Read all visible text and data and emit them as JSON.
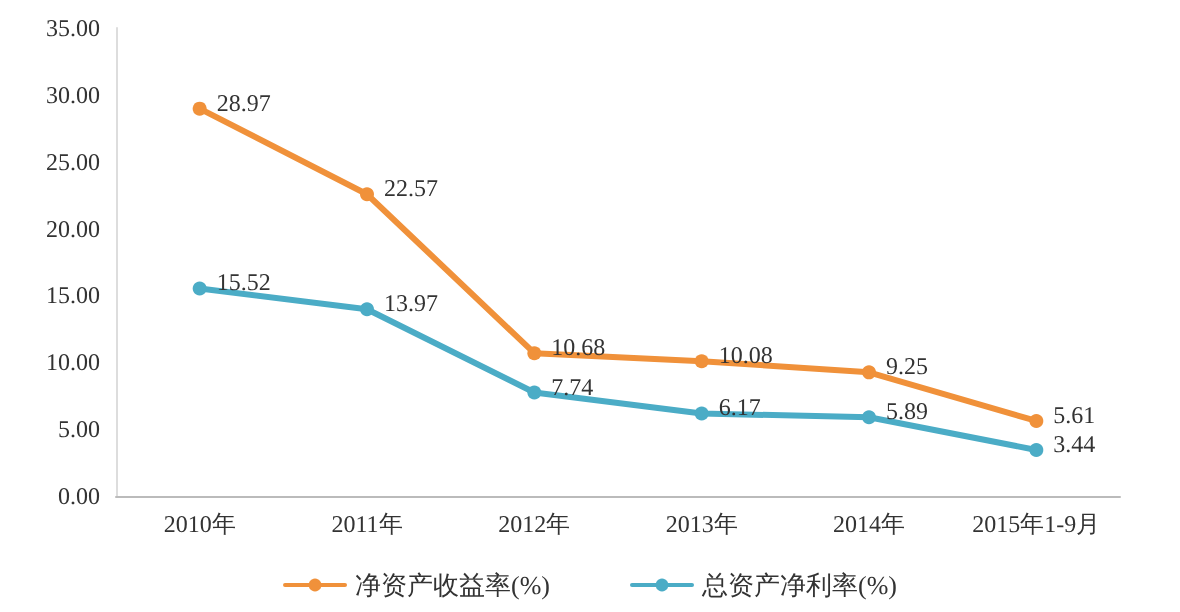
{
  "chart_data": {
    "type": "line",
    "categories": [
      "2010年",
      "2011年",
      "2012年",
      "2013年",
      "2014年",
      "2015年1-9月"
    ],
    "series": [
      {
        "name": "净资产收益率(%)",
        "color": "#f0913a",
        "values": [
          28.97,
          22.57,
          10.68,
          10.08,
          9.25,
          5.61
        ]
      },
      {
        "name": "总资产净利率(%)",
        "color": "#4bacc6",
        "values": [
          15.52,
          13.97,
          7.74,
          6.17,
          5.89,
          3.44
        ]
      }
    ],
    "ylim": [
      0,
      35
    ],
    "yticks": [
      {
        "value": 0,
        "label": "0.00"
      },
      {
        "value": 5,
        "label": "5.00"
      },
      {
        "value": 10,
        "label": "10.00"
      },
      {
        "value": 15,
        "label": "15.00"
      },
      {
        "value": 20,
        "label": "20.00"
      },
      {
        "value": 25,
        "label": "25.00"
      },
      {
        "value": 30,
        "label": "30.00"
      },
      {
        "value": 35,
        "label": "35.00"
      }
    ],
    "grid": false,
    "legend": "bottom",
    "marker": "circle",
    "line_style": "solid",
    "data_labels": true
  }
}
